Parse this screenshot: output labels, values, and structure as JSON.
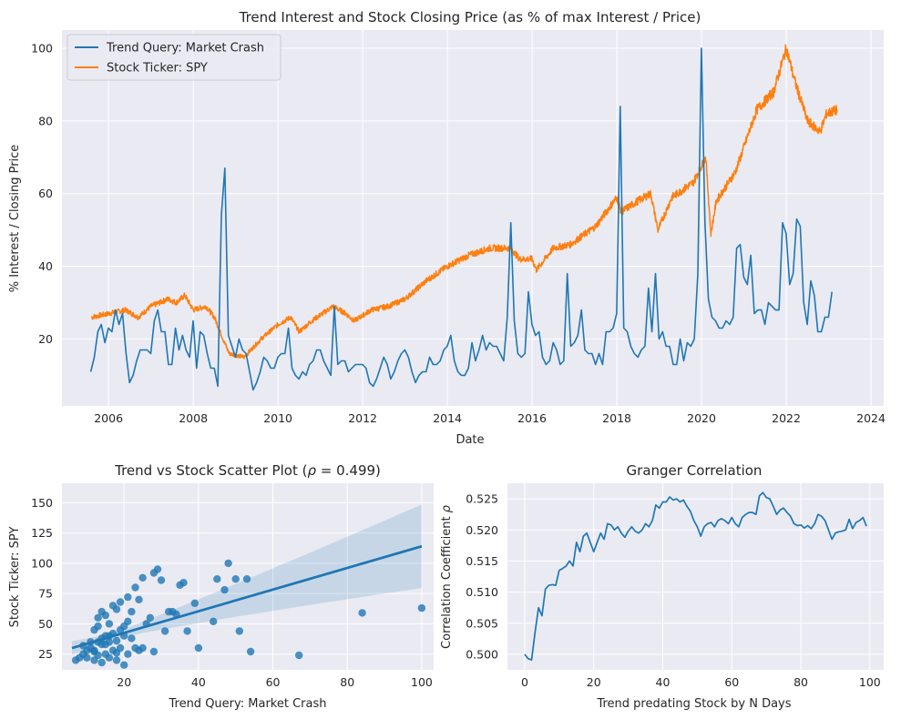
{
  "chart_data": [
    {
      "type": "line",
      "title": "Trend Interest and Stock Closing Price (as % of max Interest / Price)",
      "xlabel": "Date",
      "ylabel": "% Interest / Closing Price",
      "xlim": [
        2004.9,
        2024.3
      ],
      "ylim": [
        1.6,
        105
      ],
      "xticks": [
        2006,
        2008,
        2010,
        2012,
        2014,
        2016,
        2018,
        2020,
        2022,
        2024
      ],
      "yticks": [
        20,
        40,
        60,
        80,
        100
      ],
      "grid": true,
      "legend": "top-left",
      "series": [
        {
          "name": "Trend Query: Market Crash",
          "color": "#1f77b4",
          "kind": "monthly",
          "x_start": 2005.58,
          "x_step": 0.08333,
          "values": [
            11,
            15,
            22,
            24,
            19,
            23,
            22,
            28,
            24,
            27,
            16,
            8,
            10,
            14,
            17,
            17,
            17,
            16,
            25,
            28,
            22,
            22,
            13,
            13,
            23,
            17,
            21,
            17,
            15,
            25,
            12,
            22,
            21,
            16,
            12,
            12,
            7,
            54,
            67,
            21,
            18,
            15,
            20,
            17,
            16,
            11,
            6,
            8,
            11,
            15,
            14,
            12,
            12,
            15,
            16,
            16,
            23,
            12,
            10,
            9,
            11,
            10,
            13,
            14,
            17,
            17,
            14,
            12,
            10,
            29,
            13,
            14,
            14,
            11,
            12,
            13,
            13,
            13,
            12,
            8,
            7,
            9,
            12,
            15,
            13,
            9,
            11,
            14,
            16,
            17,
            15,
            11,
            8,
            10,
            11,
            11,
            15,
            13,
            13,
            14,
            17,
            18,
            21,
            14,
            11,
            10,
            10,
            12,
            19,
            14,
            17,
            21,
            17,
            19,
            18,
            18,
            16,
            14,
            26,
            52,
            25,
            16,
            15,
            16,
            33,
            24,
            21,
            22,
            15,
            13,
            14,
            19,
            17,
            13,
            14,
            38,
            18,
            19,
            21,
            28,
            17,
            16,
            16,
            13,
            16,
            13,
            22,
            22,
            23,
            27,
            84,
            23,
            22,
            18,
            16,
            15,
            17,
            18,
            34,
            22,
            38,
            20,
            22,
            18,
            18,
            13,
            13,
            20,
            14,
            19,
            18,
            20,
            38,
            100,
            52,
            31,
            26,
            25,
            23,
            23,
            25,
            24,
            26,
            45,
            46,
            37,
            35,
            43,
            27,
            28,
            28,
            24,
            30,
            29,
            28,
            28,
            52,
            49,
            35,
            38,
            53,
            51,
            30,
            24,
            36,
            32,
            22,
            22,
            26,
            26,
            33
          ]
        },
        {
          "name": "Stock Ticker: SPY",
          "color": "#ff7f0e",
          "kind": "keypoints",
          "x": [
            2005.6,
            2006.0,
            2006.4,
            2006.7,
            2007.0,
            2007.4,
            2007.6,
            2007.8,
            2008.0,
            2008.3,
            2008.5,
            2008.7,
            2008.85,
            2009.2,
            2009.6,
            2010.0,
            2010.3,
            2010.5,
            2010.8,
            2011.3,
            2011.6,
            2011.8,
            2012.2,
            2012.6,
            2013.0,
            2013.5,
            2014.0,
            2014.5,
            2015.0,
            2015.5,
            2015.7,
            2016.0,
            2016.1,
            2016.5,
            2016.9,
            2017.5,
            2018.0,
            2018.1,
            2018.5,
            2018.8,
            2018.97,
            2019.3,
            2019.8,
            2020.1,
            2020.22,
            2020.35,
            2020.8,
            2021.3,
            2021.7,
            2022.0,
            2022.2,
            2022.5,
            2022.8,
            2022.95,
            2023.2
          ],
          "values": [
            26,
            27,
            28,
            26,
            29,
            31,
            30,
            32,
            28,
            29,
            26,
            20,
            16,
            15,
            20,
            24,
            26,
            22,
            25,
            29,
            27,
            25,
            28,
            29,
            31,
            36,
            40,
            43,
            45,
            45,
            42,
            42,
            39,
            45,
            46,
            51,
            59,
            55,
            58,
            60,
            50,
            59,
            63,
            70,
            49,
            58,
            66,
            83,
            88,
            100,
            91,
            80,
            77,
            82,
            83
          ]
        }
      ]
    },
    {
      "type": "scatter",
      "title": "Trend vs Stock Scatter Plot (ρ = 0.499)",
      "title_prefix": "Trend vs Stock Scatter Plot (",
      "title_rho": "ρ",
      "title_suffix": " = 0.499)",
      "xlabel": "Trend Query: Market Crash",
      "ylabel": "Stock Ticker: SPY",
      "xlim": [
        3.3,
        103.2
      ],
      "ylim": [
        12,
        166
      ],
      "xticks": [
        20,
        40,
        60,
        80,
        100
      ],
      "yticks": [
        25,
        50,
        75,
        100,
        125,
        150
      ],
      "grid": true,
      "color": "#1f77b4",
      "regression": {
        "x": [
          6,
          100
        ],
        "y": [
          30,
          114
        ],
        "ci_upper_at_max": 158,
        "ci_lower_at_max": 89
      },
      "points": [
        [
          8,
          22
        ],
        [
          9,
          25
        ],
        [
          10,
          28
        ],
        [
          11,
          30
        ],
        [
          12,
          27
        ],
        [
          13,
          35
        ],
        [
          14,
          38
        ],
        [
          15,
          33
        ],
        [
          16,
          40
        ],
        [
          17,
          42
        ],
        [
          18,
          36
        ],
        [
          19,
          45
        ],
        [
          20,
          48
        ],
        [
          21,
          52
        ],
        [
          22,
          60
        ],
        [
          24,
          70
        ],
        [
          25,
          88
        ],
        [
          28,
          92
        ],
        [
          29,
          95
        ],
        [
          30,
          86
        ],
        [
          33,
          60
        ],
        [
          35,
          82
        ],
        [
          37,
          44
        ],
        [
          39,
          67
        ],
        [
          44,
          52
        ],
        [
          47,
          78
        ],
        [
          51,
          44
        ],
        [
          54,
          27
        ],
        [
          67,
          24
        ],
        [
          84,
          59
        ],
        [
          100,
          63
        ],
        [
          10,
          22
        ],
        [
          11,
          35
        ],
        [
          12,
          45
        ],
        [
          13,
          55
        ],
        [
          14,
          60
        ],
        [
          15,
          25
        ],
        [
          16,
          50
        ],
        [
          17,
          28
        ],
        [
          18,
          62
        ],
        [
          19,
          30
        ],
        [
          20,
          40
        ],
        [
          22,
          38
        ],
        [
          23,
          30
        ],
        [
          26,
          50
        ],
        [
          27,
          55
        ],
        [
          32,
          60
        ],
        [
          36,
          84
        ],
        [
          40,
          30
        ],
        [
          45,
          87
        ],
        [
          48,
          100
        ],
        [
          50,
          87
        ],
        [
          53,
          87
        ],
        [
          12,
          20
        ],
        [
          14,
          18
        ],
        [
          16,
          22
        ],
        [
          18,
          20
        ],
        [
          20,
          16
        ],
        [
          7,
          20
        ],
        [
          9,
          32
        ],
        [
          13,
          48
        ],
        [
          15,
          57
        ],
        [
          17,
          65
        ],
        [
          19,
          68
        ],
        [
          21,
          72
        ],
        [
          23,
          80
        ],
        [
          25,
          30
        ],
        [
          12,
          28
        ],
        [
          13,
          24
        ],
        [
          14,
          33
        ],
        [
          15,
          40
        ],
        [
          16,
          35
        ],
        [
          18,
          26
        ],
        [
          21,
          25
        ],
        [
          24,
          28
        ],
        [
          28,
          27
        ],
        [
          31,
          44
        ],
        [
          34,
          58
        ]
      ]
    },
    {
      "type": "line",
      "title": "Granger Correlation",
      "xlabel": "Trend predating Stock by N Days",
      "ylabel": "Correlation Coefficient ρ",
      "ylabel_prefix": "Correlation Coefficient ",
      "ylabel_rho": "ρ",
      "xlim": [
        -5,
        104
      ],
      "ylim": [
        0.4975,
        0.5275
      ],
      "xticks": [
        0,
        20,
        40,
        60,
        80,
        100
      ],
      "yticks": [
        0.5,
        0.505,
        0.51,
        0.515,
        0.52,
        0.525
      ],
      "ytick_labels": [
        "0.500",
        "0.505",
        "0.510",
        "0.515",
        "0.520",
        "0.525"
      ],
      "grid": true,
      "color": "#1f77b4",
      "x_start": 0,
      "x_step": 1,
      "values": [
        0.5,
        0.4993,
        0.4991,
        0.5035,
        0.5075,
        0.5062,
        0.5105,
        0.5111,
        0.5112,
        0.5111,
        0.5135,
        0.5138,
        0.5142,
        0.515,
        0.5142,
        0.518,
        0.5165,
        0.519,
        0.5195,
        0.518,
        0.5165,
        0.518,
        0.5195,
        0.5185,
        0.521,
        0.5208,
        0.52,
        0.5205,
        0.5195,
        0.5188,
        0.5198,
        0.5205,
        0.5198,
        0.5195,
        0.52,
        0.521,
        0.5205,
        0.5215,
        0.524,
        0.5235,
        0.5245,
        0.5245,
        0.5253,
        0.5248,
        0.525,
        0.5245,
        0.5248,
        0.5238,
        0.523,
        0.5215,
        0.5205,
        0.519,
        0.5205,
        0.521,
        0.5212,
        0.5205,
        0.5215,
        0.5218,
        0.5215,
        0.521,
        0.522,
        0.521,
        0.5205,
        0.522,
        0.5225,
        0.5228,
        0.5228,
        0.5225,
        0.5255,
        0.526,
        0.5252,
        0.525,
        0.5238,
        0.5225,
        0.5232,
        0.5235,
        0.5228,
        0.5222,
        0.521,
        0.5207,
        0.5208,
        0.5203,
        0.5207,
        0.5202,
        0.521,
        0.5225,
        0.5222,
        0.5215,
        0.52,
        0.5185,
        0.5195,
        0.5197,
        0.5198,
        0.52,
        0.5217,
        0.5202,
        0.5212,
        0.5215,
        0.522,
        0.5206
      ]
    }
  ]
}
